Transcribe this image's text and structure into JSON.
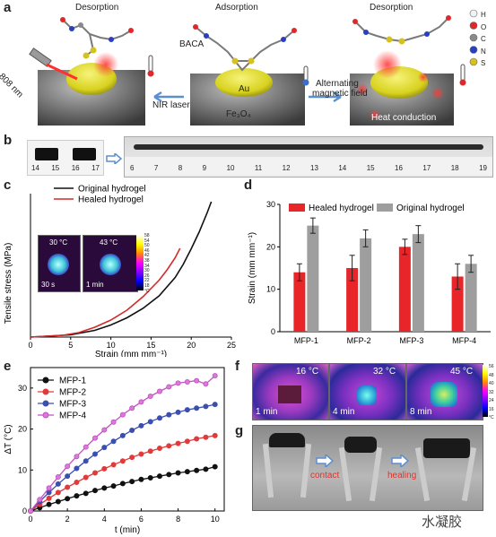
{
  "panel_a": {
    "label": "a",
    "titles": [
      "Desorption",
      "Adsorption",
      "Desorption"
    ],
    "baca": "BACA",
    "au": "Au",
    "fe3o4": "Fe₃O₄",
    "laser_nm": "808 nm",
    "nir": "NIR laser",
    "alt_field_1": "Alternating",
    "alt_field_2": "magnetic field",
    "heat": "Heat conduction",
    "legend": [
      "H",
      "O",
      "C",
      "N",
      "S"
    ],
    "legend_colors": [
      "#f2f2f2",
      "#e0282a",
      "#8a8a8a",
      "#2a3fbf",
      "#d6c21e"
    ]
  },
  "panel_b": {
    "label": "b",
    "ruler_small": [
      "14",
      "15",
      "16",
      "17"
    ],
    "ruler_large": [
      "6",
      "7",
      "8",
      "9",
      "10",
      "11",
      "12",
      "13",
      "14",
      "15",
      "16",
      "17",
      "18",
      "19"
    ]
  },
  "panel_c": {
    "label": "c",
    "inset_temps": [
      "30 °C",
      "43 °C"
    ],
    "inset_times": [
      "30 s",
      "1 min"
    ],
    "scale_ticks": [
      "58",
      "54",
      "50",
      "46",
      "42",
      "38",
      "34",
      "30",
      "26",
      "22",
      "18"
    ],
    "scale_unit": "°C"
  },
  "panel_d": {
    "label": "d"
  },
  "panel_e": {
    "label": "e"
  },
  "panel_f": {
    "label": "f",
    "temps": [
      "16 °C",
      "32 °C",
      "45 °C"
    ],
    "times": [
      "1 min",
      "4 min",
      "8 min"
    ],
    "scale_ticks": [
      "56",
      "48",
      "40",
      "32",
      "24",
      "16"
    ],
    "scale_unit": "°C"
  },
  "panel_g": {
    "label": "g",
    "contact": "contact",
    "healing": "healing"
  },
  "watermark": "水凝胶",
  "chart_data": [
    {
      "id": "c",
      "type": "line",
      "xlabel": "Strain (mm mm⁻¹)",
      "ylabel": "Tensile stress (MPa)",
      "xlim": [
        0,
        25
      ],
      "ylim": [
        0,
        3.2
      ],
      "xticks": [
        0,
        5,
        10,
        15,
        20,
        25
      ],
      "series": [
        {
          "name": "Original hydrogel",
          "color": "#111111",
          "x": [
            0,
            5,
            8,
            10,
            12,
            14,
            16,
            18,
            19,
            20,
            21,
            22,
            22.5
          ],
          "y": [
            0,
            0.05,
            0.15,
            0.27,
            0.43,
            0.64,
            0.92,
            1.33,
            1.62,
            1.97,
            2.35,
            2.78,
            3.02
          ]
        },
        {
          "name": "Healed hydrogel",
          "color": "#d42a2a",
          "x": [
            0,
            4,
            6,
            8,
            10,
            12,
            14,
            16,
            17,
            18,
            18.6
          ],
          "y": [
            0,
            0.04,
            0.1,
            0.22,
            0.38,
            0.6,
            0.9,
            1.27,
            1.5,
            1.77,
            1.98
          ]
        }
      ]
    },
    {
      "id": "d",
      "type": "bar",
      "ylabel": "Strain (mm mm⁻¹)",
      "categories": [
        "MFP-1",
        "MFP-2",
        "MFP-3",
        "MFP-4"
      ],
      "ylim": [
        0,
        30
      ],
      "yticks": [
        0,
        10,
        20,
        30
      ],
      "series": [
        {
          "name": "Healed hydrogel",
          "color": "#e8262a",
          "values": [
            14,
            15,
            20,
            13
          ],
          "errors": [
            2,
            3,
            1.8,
            3
          ]
        },
        {
          "name": "Original hydrogel",
          "color": "#9e9e9e",
          "values": [
            25,
            22,
            23,
            16
          ],
          "errors": [
            1.8,
            2,
            2,
            2
          ]
        }
      ]
    },
    {
      "id": "e",
      "type": "line",
      "xlabel": "t (min)",
      "ylabel": "ΔT (°C)",
      "xlim": [
        0,
        10.5
      ],
      "ylim": [
        0,
        35
      ],
      "xticks": [
        0,
        2,
        4,
        6,
        8,
        10
      ],
      "yticks": [
        0,
        10,
        20,
        30
      ],
      "x": [
        0,
        0.5,
        1,
        1.5,
        2,
        2.5,
        3,
        3.5,
        4,
        4.5,
        5,
        5.5,
        6,
        6.5,
        7,
        7.5,
        8,
        8.5,
        9,
        9.5,
        10
      ],
      "series": [
        {
          "name": "MFP-1",
          "color": "#111111",
          "marker_fill": "#111111",
          "values": [
            0,
            0.8,
            1.6,
            2.3,
            3.0,
            3.7,
            4.3,
            5.0,
            5.6,
            6.1,
            6.7,
            7.2,
            7.7,
            8.1,
            8.5,
            8.9,
            9.3,
            9.6,
            9.9,
            10.2,
            10.8
          ]
        },
        {
          "name": "MFP-2",
          "color": "#e23a3a",
          "marker_fill": "#e23a3a",
          "values": [
            0,
            1.6,
            3.1,
            4.5,
            5.8,
            7.0,
            8.2,
            9.3,
            10.3,
            11.3,
            12.2,
            13.1,
            13.9,
            14.6,
            15.3,
            15.9,
            16.5,
            17.0,
            17.6,
            18.0,
            18.4
          ]
        },
        {
          "name": "MFP-3",
          "color": "#3a4fb0",
          "marker_fill": "#3a4fb0",
          "values": [
            0,
            2.3,
            4.5,
            6.6,
            8.5,
            10.4,
            12.2,
            13.9,
            15.5,
            17.0,
            18.4,
            19.7,
            20.8,
            21.8,
            22.7,
            23.5,
            24.1,
            24.7,
            25.1,
            25.5,
            26.0
          ]
        },
        {
          "name": "MFP-4",
          "color": "#c44fc4",
          "marker_fill": "#d77bd7",
          "values": [
            0,
            2.8,
            5.6,
            8.3,
            10.9,
            13.3,
            15.6,
            17.8,
            19.8,
            21.7,
            23.5,
            25.1,
            26.6,
            28.0,
            29.2,
            30.3,
            31.2,
            31.5,
            31.8,
            31.0,
            33.0
          ]
        }
      ]
    }
  ]
}
